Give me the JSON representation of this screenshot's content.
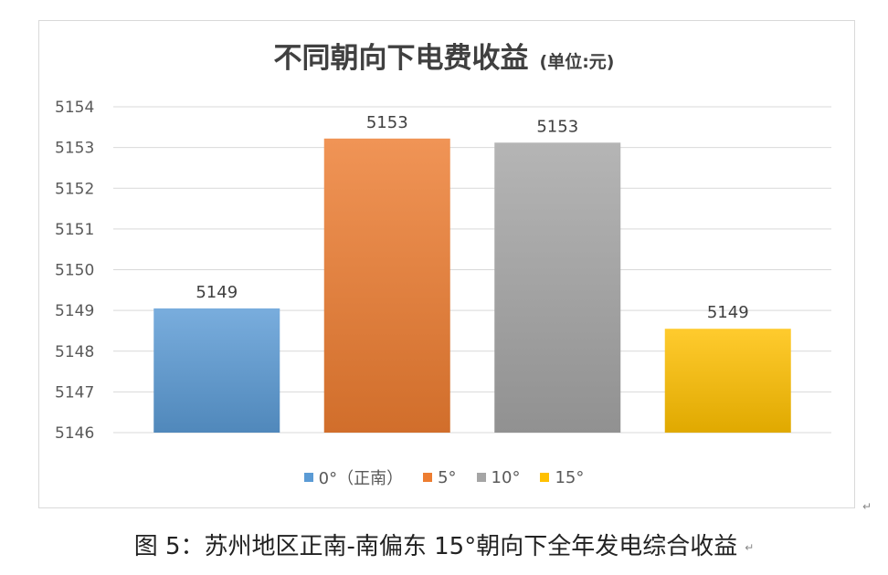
{
  "chart_data": {
    "type": "bar",
    "title": "不同朝向下电费收益",
    "subtitle": "(单位:元)",
    "categories": [
      "0°（正南）",
      "5°",
      "10°",
      "15°"
    ],
    "values": [
      5149.05,
      5153.22,
      5153.12,
      5148.55
    ],
    "data_labels": [
      "5149",
      "5153",
      "5153",
      "5149"
    ],
    "colors": [
      "#5b9bd5",
      "#ed7d31",
      "#a5a5a5",
      "#ffc000"
    ],
    "ylim": [
      5146,
      5154
    ],
    "y_ticks": [
      "5146",
      "5147",
      "5148",
      "5149",
      "5150",
      "5151",
      "5152",
      "5153",
      "5154"
    ],
    "grid": true,
    "legend_position": "bottom",
    "xlabel": "",
    "ylabel": ""
  },
  "caption": "图 5：苏州地区正南-南偏东 15°朝向下全年发电综合收益",
  "paragraph_mark": "↵"
}
